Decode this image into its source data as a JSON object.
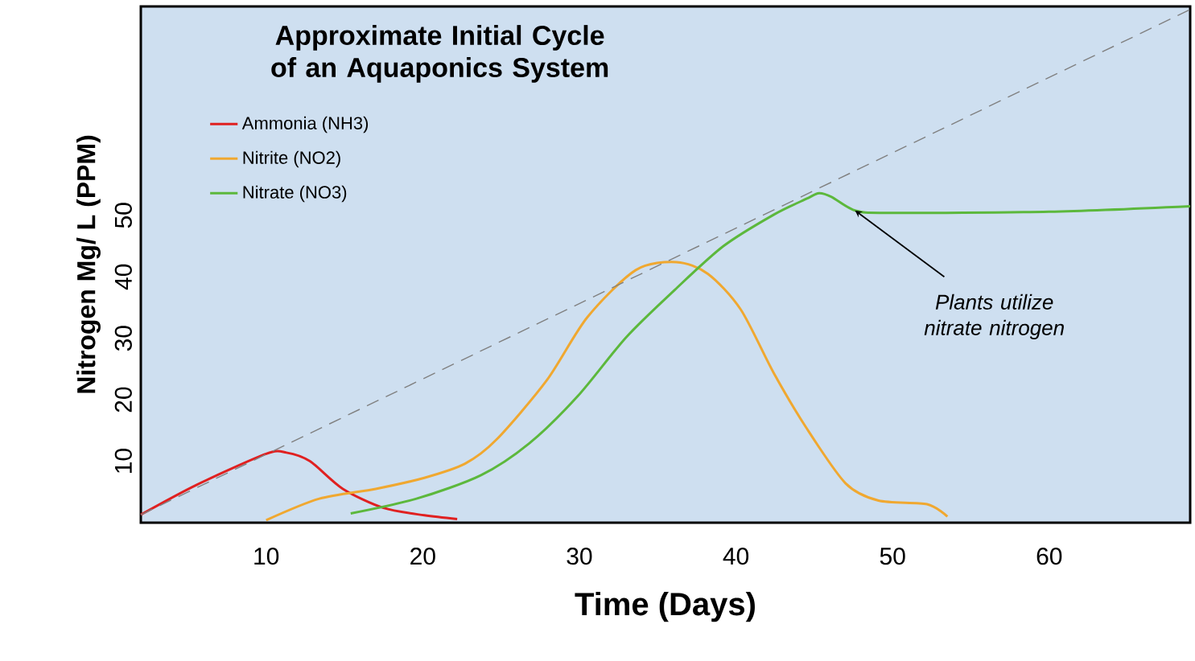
{
  "chart_data": {
    "type": "line",
    "title": "Approximate Initial Cycle of an Aquaponics System",
    "xlabel": "Time (Days)",
    "ylabel": "Nitrogen Mg/ L (PPM)",
    "xlim": [
      2,
      69
    ],
    "ylim": [
      0,
      84
    ],
    "xticks": [
      10,
      20,
      30,
      40,
      50,
      60
    ],
    "yticks": [
      10,
      20,
      30,
      40,
      50
    ],
    "grid": false,
    "legend": "top left",
    "marker": "none",
    "series": [
      {
        "name": "Ammonia (NH3)",
        "color": "#e02020",
        "x": [
          2,
          5.6,
          10,
          11.3,
          12.8,
          14.9,
          17.5,
          20.1,
          22.2
        ],
        "values": [
          1.3,
          6.2,
          11.2,
          11.4,
          10.0,
          5.5,
          2.4,
          1.2,
          0.6
        ]
      },
      {
        "name": "Nitrite (NO2)",
        "color": "#f0a830",
        "x": [
          10,
          13.4,
          17,
          20.1,
          22.7,
          24.7,
          27.9,
          30.5,
          33.6,
          36.2,
          38.2,
          40.3,
          42.4,
          44.5,
          47,
          49.1,
          52.2,
          53.5
        ],
        "values": [
          0.4,
          3.9,
          5.5,
          7.3,
          9.6,
          13.5,
          23.1,
          33.4,
          41.1,
          42.4,
          40.5,
          34.7,
          24.4,
          15.4,
          6.4,
          3.6,
          3.0,
          1.0
        ]
      },
      {
        "name": "Nitrate (NO3)",
        "color": "#5cb83c",
        "x": [
          15.4,
          19.6,
          23.7,
          26.8,
          29.9,
          33,
          36.1,
          39.2,
          42.4,
          44.5,
          45.3,
          46.1,
          47.6,
          49.7,
          60,
          69
        ],
        "values": [
          1.5,
          3.9,
          7.7,
          12.9,
          20.6,
          30.2,
          37.9,
          45,
          50.1,
          52.7,
          53.6,
          53,
          50.8,
          50.4,
          50.6,
          51.5
        ]
      },
      {
        "type": "line",
        "color": "#808080",
        "line_style": "dashed",
        "x": [
          2,
          69
        ],
        "values": [
          1.3,
          83.5
        ]
      }
    ],
    "annotations": [
      {
        "text": "Plants utilize nitrate nitrogen",
        "x": 47.6,
        "y": 50.8
      }
    ]
  }
}
